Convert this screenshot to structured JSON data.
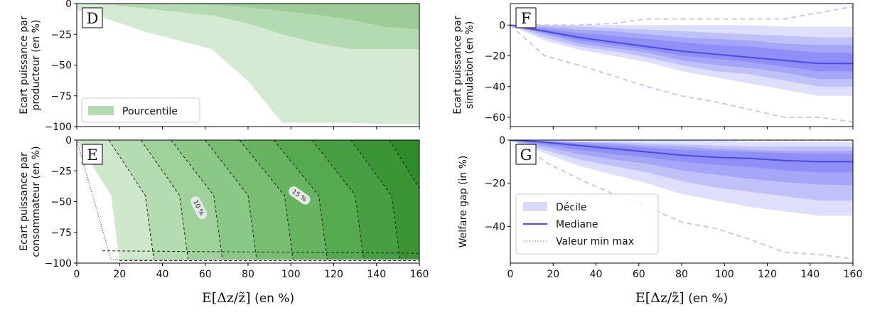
{
  "colors": {
    "green_light": "#d4ead2",
    "green_mid": "#b3dab0",
    "green_dark": "#9ccd98",
    "blue_base": "#6a6af4",
    "blue_line": "#4a4ae8",
    "blue_dash": "#c8c8f6"
  },
  "chart_data": [
    {
      "panel": "D",
      "type": "area",
      "ylabel": [
        "Ecart puissance par",
        "producteur (en %)"
      ],
      "xlabel": "",
      "xlim": [
        0,
        160
      ],
      "ylim": [
        -100,
        0
      ],
      "x_ticks": [
        0,
        20,
        40,
        60,
        80,
        100,
        120,
        140,
        160
      ],
      "y_ticks": [
        0,
        -25,
        -50,
        -75,
        -100
      ],
      "legend": [
        "Pourcentile"
      ],
      "bands": [
        {
          "x": [
            0,
            10,
            32,
            63,
            80,
            96,
            128,
            144,
            160
          ],
          "lower": [
            -5,
            -10,
            -23,
            -37,
            -63,
            -97,
            -97,
            -98,
            -98
          ],
          "upper": [
            0,
            0,
            0,
            0,
            0,
            0,
            0,
            0,
            0
          ]
        },
        {
          "x": [
            0,
            16,
            32,
            64,
            80,
            96,
            112,
            128,
            144,
            160
          ],
          "lower": [
            0,
            -1,
            -4,
            -10,
            -16,
            -25,
            -32,
            -37,
            -37,
            -37
          ],
          "upper": [
            0,
            0,
            0,
            0,
            0,
            0,
            0,
            0,
            0,
            0
          ]
        },
        {
          "x": [
            0,
            40,
            64,
            80,
            96,
            112,
            128,
            144,
            160
          ],
          "lower": [
            0,
            0,
            -1,
            -3,
            -6,
            -9,
            -13,
            -19,
            -21
          ],
          "upper": [
            0,
            0,
            0,
            0,
            0,
            0,
            0,
            0,
            0
          ]
        }
      ]
    },
    {
      "panel": "E",
      "type": "area",
      "ylabel": [
        "Ecart puissance par",
        "consommateur (en %)"
      ],
      "xlabel": "E[Δz/z̃] (en %)",
      "xlim": [
        0,
        160
      ],
      "ylim": [
        -100,
        0
      ],
      "x_ticks": [
        0,
        20,
        40,
        60,
        80,
        100,
        120,
        140,
        160
      ],
      "y_ticks": [
        0,
        -25,
        -50,
        -75,
        -100
      ],
      "contour_labels": [
        {
          "text": "10 %",
          "x": 57,
          "y": -55
        },
        {
          "text": "15 %",
          "x": 104,
          "y": -45
        }
      ]
    },
    {
      "panel": "F",
      "type": "line",
      "ylabel": [
        "Ecart puissance par",
        "simulation (en %)"
      ],
      "xlabel": "",
      "xlim": [
        0,
        160
      ],
      "ylim": [
        -66,
        14
      ],
      "x_ticks": [
        0,
        20,
        40,
        60,
        80,
        100,
        120,
        140,
        160
      ],
      "y_ticks": [
        0,
        -20,
        -40,
        -60
      ],
      "x": [
        0,
        8,
        16,
        32,
        48,
        64,
        80,
        96,
        112,
        128,
        144,
        160
      ],
      "median": [
        0,
        -2,
        -4,
        -8,
        -11,
        -14,
        -17,
        -19,
        -21,
        -23,
        -25,
        -25
      ],
      "deciles": [
        {
          "lower": [
            0,
            -5,
            -10,
            -16,
            -20,
            -24,
            -30,
            -34,
            -38,
            -42,
            -46,
            -46
          ],
          "upper": [
            0,
            0,
            0,
            0,
            0,
            0,
            0,
            0,
            0,
            -1,
            -1,
            -1
          ]
        },
        {
          "lower": [
            0,
            -4,
            -8,
            -14,
            -17,
            -21,
            -26,
            -30,
            -32,
            -36,
            -40,
            -40
          ],
          "upper": [
            0,
            0,
            0,
            -1,
            -2,
            -3,
            -4,
            -5,
            -6,
            -7,
            -8,
            -8
          ]
        },
        {
          "lower": [
            0,
            -3,
            -6,
            -12,
            -15,
            -18,
            -23,
            -26,
            -28,
            -31,
            -35,
            -35
          ],
          "upper": [
            0,
            -1,
            -1,
            -3,
            -4,
            -6,
            -8,
            -9,
            -10,
            -12,
            -13,
            -13
          ]
        },
        {
          "lower": [
            0,
            -2.5,
            -5,
            -10,
            -13,
            -16,
            -20,
            -22,
            -24,
            -27,
            -30,
            -30
          ],
          "upper": [
            0,
            -1.5,
            -2.5,
            -5,
            -7,
            -9,
            -11,
            -13,
            -14,
            -16,
            -18,
            -18
          ]
        }
      ],
      "min": [
        0,
        -10,
        -20,
        -26,
        -33,
        -40,
        -46,
        -50,
        -55,
        -60,
        -60,
        -63
      ],
      "max": [
        0,
        0,
        0,
        0,
        1,
        4,
        4,
        4,
        4,
        4,
        8,
        12
      ]
    },
    {
      "panel": "G",
      "type": "line",
      "ylabel": [
        "Welfare gap (in %)"
      ],
      "xlabel": "E[Δz/z̃] (en %)",
      "xlim": [
        0,
        160
      ],
      "ylim": [
        -57,
        0
      ],
      "x_ticks": [
        0,
        20,
        40,
        60,
        80,
        100,
        120,
        140,
        160
      ],
      "y_ticks": [
        0,
        -20,
        -40
      ],
      "legend": [
        "Décile",
        "Mediane",
        "Valeur min max"
      ],
      "x": [
        0,
        8,
        16,
        32,
        48,
        64,
        80,
        96,
        112,
        128,
        144,
        160
      ],
      "median": [
        0,
        -0.5,
        -1,
        -2.5,
        -4,
        -5.5,
        -7,
        -8,
        -8.5,
        -9.5,
        -10,
        -10
      ],
      "deciles": [
        {
          "lower": [
            0,
            -3,
            -6,
            -12,
            -16,
            -20,
            -25,
            -28,
            -31,
            -33,
            -35,
            -35
          ],
          "upper": [
            0,
            0,
            0,
            0,
            0,
            0,
            0,
            0,
            -1,
            -1,
            -1,
            -1
          ]
        },
        {
          "lower": [
            0,
            -2.5,
            -4.5,
            -9,
            -12,
            -15,
            -19,
            -22,
            -24,
            -26,
            -28,
            -28
          ],
          "upper": [
            0,
            0,
            0,
            -1,
            -1,
            -1.5,
            -2,
            -2.5,
            -3,
            -3,
            -3,
            -3
          ]
        },
        {
          "lower": [
            0,
            -1.5,
            -3,
            -6.5,
            -9,
            -11,
            -14,
            -16,
            -18,
            -19.5,
            -20.5,
            -21
          ],
          "upper": [
            0,
            0,
            -0.5,
            -1,
            -1.5,
            -2.5,
            -3,
            -4,
            -4.5,
            -5,
            -5,
            -5
          ]
        },
        {
          "lower": [
            0,
            -1,
            -2,
            -4.5,
            -6.5,
            -8,
            -10,
            -11.5,
            -12.5,
            -14,
            -15,
            -15
          ],
          "upper": [
            0,
            -0.2,
            -0.5,
            -1.5,
            -2.5,
            -3.5,
            -4.5,
            -5,
            -5.5,
            -6,
            -6.5,
            -6.5
          ]
        }
      ],
      "min": [
        0,
        -3,
        -10,
        -18,
        -25,
        -31,
        -38,
        -41,
        -46,
        -52,
        -53,
        -55
      ],
      "max": [
        0,
        0,
        0,
        0,
        0,
        0,
        0,
        0,
        0,
        0,
        0,
        0
      ]
    }
  ]
}
